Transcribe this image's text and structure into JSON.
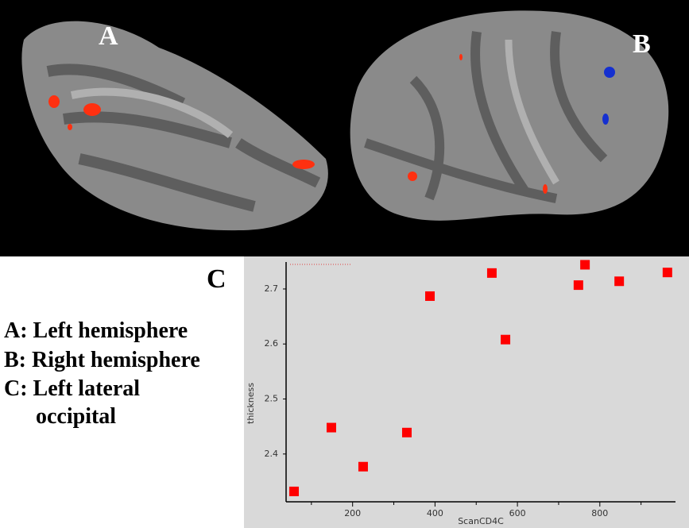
{
  "panel_labels": {
    "a": "A",
    "b": "B",
    "c": "C"
  },
  "legend": [
    "A: Left hemisphere",
    "B: Right hemisphere",
    "C: Left lateral",
    "occipital"
  ],
  "chart_data": {
    "type": "scatter",
    "x_label": "ScanCD4C",
    "y_label": "thickness",
    "color": "#ff0000",
    "x": [
      57.9,
      148.5,
      225.6,
      331.7,
      387.7,
      538,
      571,
      748,
      764,
      847,
      964
    ],
    "values": [
      2.332,
      2.448,
      2.377,
      2.439,
      2.687,
      2.729,
      2.608,
      2.707,
      2.744,
      2.714,
      2.73
    ],
    "xlim": [
      38.6,
      983.6
    ],
    "xticks": [
      200,
      400,
      600,
      800
    ],
    "x_minor_ticks": [
      100,
      300,
      500,
      700,
      900
    ],
    "ylim": [
      2.316,
      2.749
    ],
    "yticks": [
      2.4,
      2.5,
      2.6,
      2.7
    ],
    "grid": false
  }
}
